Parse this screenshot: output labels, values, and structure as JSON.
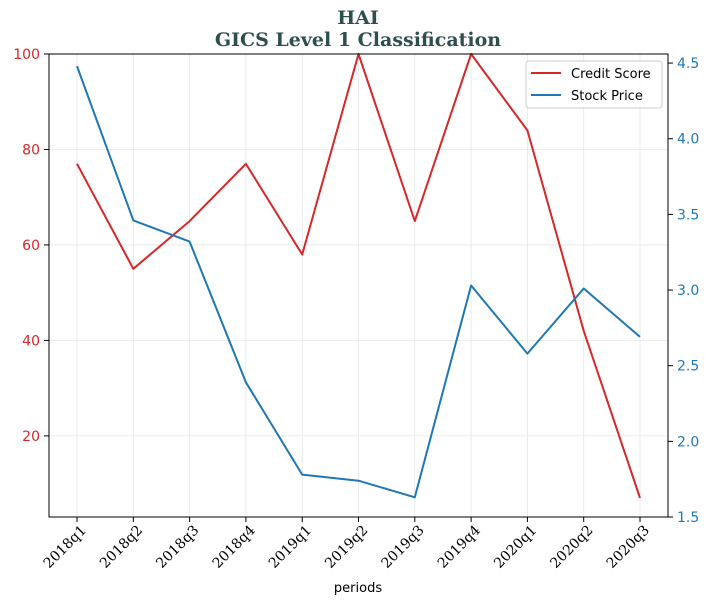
{
  "chart_data": {
    "type": "line",
    "title": "HAI",
    "subtitle": "GICS Level 1 Classification",
    "xlabel": "periods",
    "categories": [
      "2018q1",
      "2018q2",
      "2018q3",
      "2018q4",
      "2019q1",
      "2019q2",
      "2019q3",
      "2019q4",
      "2020q1",
      "2020q2",
      "2020q3"
    ],
    "series": [
      {
        "name": "Credit Score",
        "axis": "left",
        "color": "#d62728",
        "values": [
          77,
          55,
          65,
          77,
          58,
          100,
          65,
          100,
          84,
          42,
          7
        ]
      },
      {
        "name": "Stock Price",
        "axis": "right",
        "color": "#1f77b4",
        "values": [
          4.48,
          3.46,
          3.32,
          2.39,
          1.78,
          1.74,
          1.63,
          3.03,
          2.58,
          3.01,
          2.69
        ]
      }
    ],
    "ylim_left": [
      3,
      100
    ],
    "yticks_left": [
      "20",
      "40",
      "60",
      "80",
      "100"
    ],
    "ylim_right": [
      1.5,
      4.56
    ],
    "yticks_right": [
      "1.5",
      "2.0",
      "2.5",
      "3.0",
      "3.5",
      "4.0",
      "4.5"
    ],
    "grid": true,
    "legend_position": "top-right",
    "colors": {
      "title": "#2f4f4f",
      "left_axis": "#d62728",
      "right_axis": "#1f77b4"
    }
  }
}
